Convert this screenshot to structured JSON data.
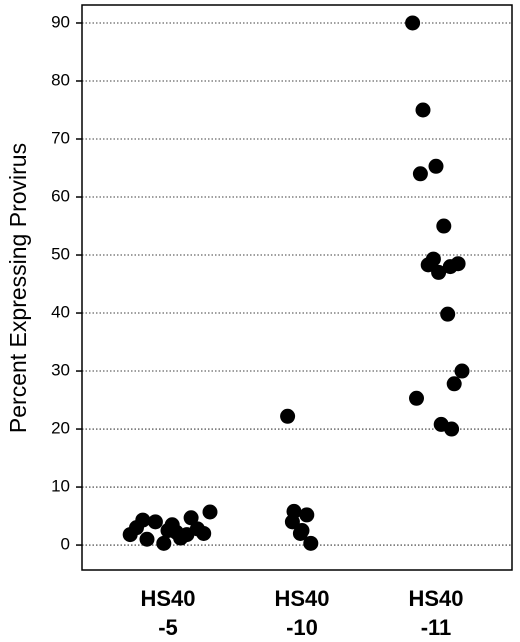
{
  "chart_data": {
    "type": "strip",
    "y_label": "Percent Expressing Provirus",
    "categories": [
      [
        "HS40",
        "-5"
      ],
      [
        "HS40",
        "-10"
      ],
      [
        "HS40",
        "-11"
      ]
    ],
    "series": [
      {
        "color": "#000000",
        "values": [
          1.8,
          1.0,
          2.5,
          4.3,
          1.2,
          0.3,
          4.7,
          3.5,
          2.0,
          4.0,
          1.8,
          5.7,
          2.8,
          3.0,
          2.2
        ]
      },
      {
        "color": "#000000",
        "values": [
          22.2,
          5.8,
          2.5,
          4.0,
          5.2,
          2.0,
          0.3
        ]
      },
      {
        "color": "#000000",
        "values": [
          90,
          75,
          65.3,
          64,
          55,
          49.3,
          48,
          47,
          48.5,
          48.3,
          39.8,
          30,
          27.8,
          25.3,
          20.8,
          20
        ]
      }
    ],
    "ylim": [
      -4.3,
      93.1
    ],
    "yticks": [
      0,
      10,
      20,
      30,
      40,
      50,
      60,
      70,
      80,
      90
    ],
    "grid": true
  }
}
